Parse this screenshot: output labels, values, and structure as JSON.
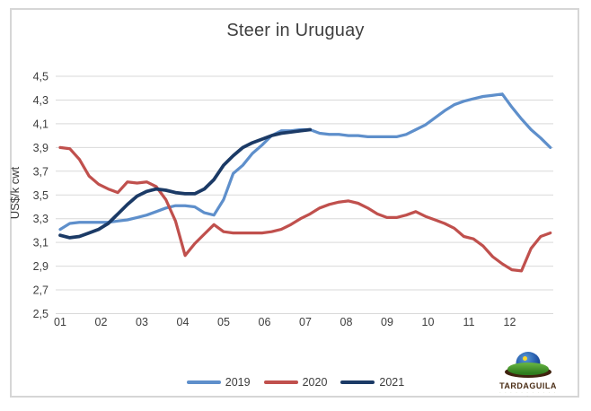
{
  "chart_data": {
    "type": "line",
    "title": "Steer in Uruguay",
    "ylabel": "US$/k cwt",
    "ylim": [
      2.5,
      4.5
    ],
    "grid": true,
    "grid_color": "#d9d9d9",
    "tick_color": "#3d3d3d",
    "legend_position": "bottom",
    "x_unit": "week-of-year",
    "x_tick_labels": [
      "01",
      "02",
      "03",
      "04",
      "05",
      "06",
      "07",
      "08",
      "09",
      "10",
      "11",
      "12"
    ],
    "y_ticks": [
      {
        "value": 4.5,
        "label": "4,5"
      },
      {
        "value": 4.3,
        "label": "4,3"
      },
      {
        "value": 4.1,
        "label": "4,1"
      },
      {
        "value": 3.9,
        "label": "3,9"
      },
      {
        "value": 3.7,
        "label": "3,7"
      },
      {
        "value": 3.5,
        "label": "3,5"
      },
      {
        "value": 3.3,
        "label": "3,3"
      },
      {
        "value": 3.1,
        "label": "3,1"
      },
      {
        "value": 2.9,
        "label": "2,9"
      },
      {
        "value": 2.7,
        "label": "2,7"
      },
      {
        "value": 2.5,
        "label": "2,5"
      }
    ],
    "series": [
      {
        "name": "2019",
        "color": "#5e8fcb",
        "stroke_width": 3.25,
        "values": [
          3.21,
          3.26,
          3.27,
          3.27,
          3.27,
          3.27,
          3.28,
          3.29,
          3.31,
          3.33,
          3.36,
          3.39,
          3.41,
          3.41,
          3.4,
          3.35,
          3.33,
          3.46,
          3.68,
          3.75,
          3.85,
          3.92,
          4.0,
          4.04,
          4.04,
          4.05,
          4.05,
          4.02,
          4.01,
          4.01,
          4.0,
          4.0,
          3.99,
          3.99,
          3.99,
          3.99,
          4.01,
          4.05,
          4.09,
          4.15,
          4.21,
          4.26,
          4.29,
          4.31,
          4.33,
          4.34,
          4.35,
          4.24,
          4.14,
          4.05,
          3.98,
          3.9
        ]
      },
      {
        "name": "2020",
        "color": "#c0504d",
        "stroke_width": 3.25,
        "values": [
          3.9,
          3.89,
          3.8,
          3.66,
          3.59,
          3.55,
          3.52,
          3.61,
          3.6,
          3.61,
          3.57,
          3.46,
          3.28,
          2.99,
          3.09,
          3.17,
          3.25,
          3.19,
          3.18,
          3.18,
          3.18,
          3.18,
          3.19,
          3.21,
          3.25,
          3.3,
          3.34,
          3.39,
          3.42,
          3.44,
          3.45,
          3.43,
          3.39,
          3.34,
          3.31,
          3.31,
          3.33,
          3.36,
          3.32,
          3.29,
          3.26,
          3.22,
          3.15,
          3.13,
          3.07,
          2.98,
          2.92,
          2.87,
          2.86,
          3.05,
          3.15,
          3.18
        ]
      },
      {
        "name": "2021",
        "color": "#1b3a66",
        "stroke_width": 3.75,
        "values": [
          3.16,
          3.14,
          3.15,
          3.18,
          3.21,
          3.26,
          3.34,
          3.42,
          3.49,
          3.53,
          3.55,
          3.54,
          3.52,
          3.51,
          3.51,
          3.55,
          3.63,
          3.75,
          3.83,
          3.9,
          3.94,
          3.97,
          4.0,
          4.02,
          4.03,
          4.04,
          4.05
        ]
      }
    ]
  },
  "logo": {
    "text": "TARDAGUILA",
    "tagline": "· · · · · · · · · · · ·"
  }
}
